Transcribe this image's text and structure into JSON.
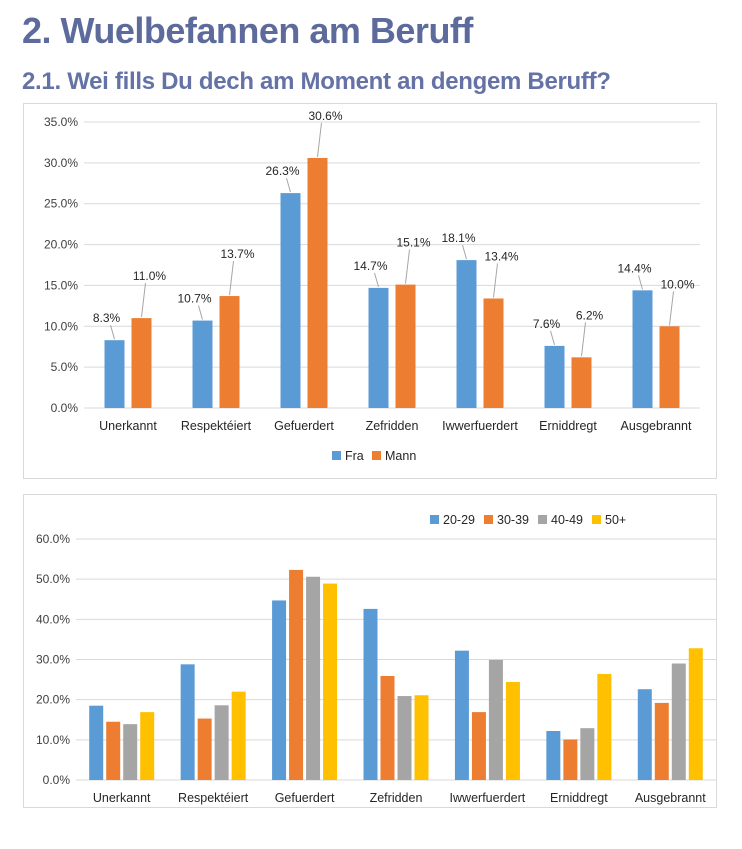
{
  "page": {
    "title": "2. Wuelbefannen am Beruff",
    "subtitle": "2.1. Wei fills Du dech am Moment an dengem Beruff?"
  },
  "colors": {
    "blue": "#5b9bd5",
    "orange": "#ed7d31",
    "gray": "#a5a5a5",
    "yellow": "#ffc000",
    "grid": "#d9d9d9",
    "leader": "#a6a6a6"
  },
  "chart_data": [
    {
      "type": "bar",
      "title": "",
      "xlabel": "",
      "ylabel": "",
      "ylim": [
        0,
        35
      ],
      "yticks": [
        "0.0%",
        "5.0%",
        "10.0%",
        "15.0%",
        "20.0%",
        "25.0%",
        "30.0%",
        "35.0%"
      ],
      "categories": [
        "Unerkannt",
        "Respektéiert",
        "Gefuerdert",
        "Zefridden",
        "Iwwerfuerdert",
        "Erniddregt",
        "Ausgebrannt"
      ],
      "series": [
        {
          "name": "Fra",
          "color": "#5b9bd5",
          "values": [
            8.3,
            10.7,
            26.3,
            14.7,
            18.1,
            7.6,
            14.4
          ],
          "labels": [
            "8.3%",
            "10.7%",
            "26.3%",
            "14.7%",
            "18.1%",
            "7.6%",
            "14.4%"
          ]
        },
        {
          "name": "Mann",
          "color": "#ed7d31",
          "values": [
            11.0,
            13.7,
            30.6,
            15.1,
            13.4,
            6.2,
            10.0
          ],
          "labels": [
            "11.0%",
            "13.7%",
            "30.6%",
            "15.1%",
            "13.4%",
            "6.2%",
            "10.0%"
          ]
        }
      ],
      "legend": "bottom",
      "grid": true
    },
    {
      "type": "bar",
      "title": "",
      "xlabel": "",
      "ylabel": "",
      "ylim": [
        0,
        60
      ],
      "yticks": [
        "0.0%",
        "10.0%",
        "20.0%",
        "30.0%",
        "40.0%",
        "50.0%",
        "60.0%"
      ],
      "categories": [
        "Unerkannt",
        "Respektéiert",
        "Gefuerdert",
        "Zefridden",
        "Iwwerfuerdert",
        "Erniddregt",
        "Ausgebrannt"
      ],
      "series": [
        {
          "name": "20-29",
          "color": "#5b9bd5",
          "values": [
            18.5,
            28.8,
            44.7,
            42.6,
            32.2,
            12.2,
            22.6
          ]
        },
        {
          "name": "30-39",
          "color": "#ed7d31",
          "values": [
            14.5,
            15.3,
            52.3,
            25.9,
            16.9,
            10.1,
            19.2
          ]
        },
        {
          "name": "40-49",
          "color": "#a5a5a5",
          "values": [
            13.9,
            18.6,
            50.6,
            20.9,
            29.9,
            12.9,
            29.0
          ]
        },
        {
          "name": "50+",
          "color": "#ffc000",
          "values": [
            16.9,
            22.0,
            48.9,
            21.1,
            24.4,
            26.4,
            32.8
          ]
        }
      ],
      "legend": "top-right",
      "grid": true
    }
  ]
}
